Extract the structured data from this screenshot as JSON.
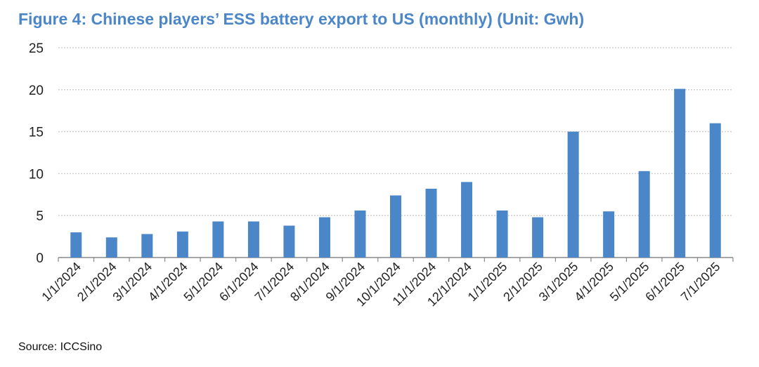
{
  "title": "Figure 4: Chinese players’ ESS battery export to US (monthly) (Unit: Gwh)",
  "source": "Source: ICCSino",
  "colors": {
    "title": "#4a86c8",
    "bar": "#4a86c8",
    "grid": "#d0d0d0",
    "axis": "#888888"
  },
  "chart_data": {
    "type": "bar",
    "title": "Figure 4: Chinese players’ ESS battery export to US (monthly) (Unit: Gwh)",
    "xlabel": "",
    "ylabel": "",
    "ylim": [
      0,
      25
    ],
    "yticks": [
      0,
      5,
      10,
      15,
      20,
      25
    ],
    "grid": true,
    "categories": [
      "1/1/2024",
      "2/1/2024",
      "3/1/2024",
      "4/1/2024",
      "5/1/2024",
      "6/1/2024",
      "7/1/2024",
      "8/1/2024",
      "9/1/2024",
      "10/1/2024",
      "11/1/2024",
      "12/1/2024",
      "1/1/2025",
      "2/1/2025",
      "3/1/2025",
      "4/1/2025",
      "5/1/2025",
      "6/1/2025",
      "7/1/2025"
    ],
    "values": [
      3.0,
      2.4,
      2.8,
      3.1,
      4.3,
      4.3,
      3.8,
      4.8,
      5.6,
      7.4,
      8.2,
      9.0,
      5.6,
      4.8,
      15.0,
      5.5,
      10.3,
      20.1,
      16.0
    ]
  }
}
